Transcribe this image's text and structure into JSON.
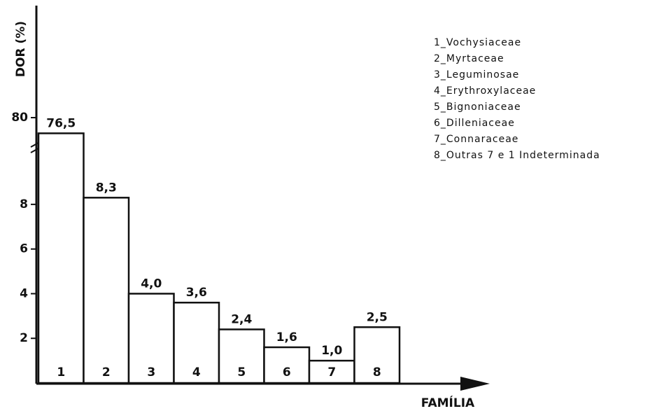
{
  "chart_data": {
    "type": "bar",
    "y_label": "DOR (%)",
    "x_label": "FAMÍLIA",
    "categories": [
      "1",
      "2",
      "3",
      "4",
      "5",
      "6",
      "7",
      "8"
    ],
    "values": [
      76.5,
      8.3,
      4.0,
      3.6,
      2.4,
      1.6,
      1.0,
      2.5
    ],
    "value_labels": [
      "76,5",
      "8,3",
      "4,0",
      "3,6",
      "2,4",
      "1,6",
      "1,0",
      "2,5"
    ],
    "color": "#ffffff",
    "ylim": [
      0,
      80
    ],
    "yticks": [
      2,
      4,
      6,
      8,
      80
    ],
    "y_break": [
      9,
      75
    ],
    "grid": false,
    "legend": [
      "1_Vochysiaceae",
      "2_Myrtaceae",
      "3_Leguminosae",
      "4_Erythroxylaceae",
      "5_Bignoniaceae",
      "6_Dilleniaceae",
      "7_Connaraceae",
      "8_Outras 7 e 1 Indeterminada"
    ]
  }
}
